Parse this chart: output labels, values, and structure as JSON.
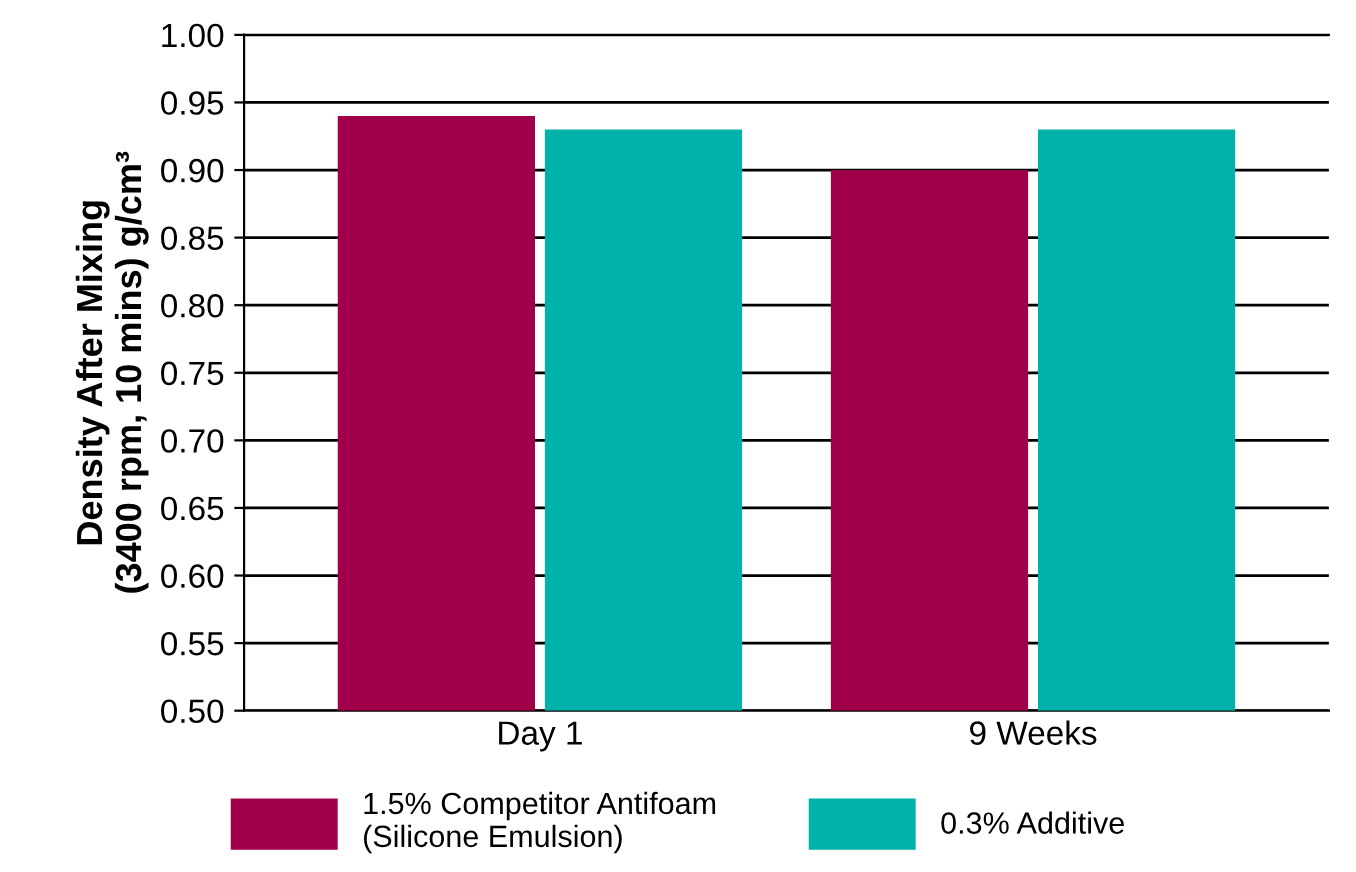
{
  "chart_data": {
    "type": "bar",
    "ylabel": "Density After Mixing\n(3400 rpm, 10 mins) g/cm³",
    "categories": [
      "Day 1",
      "9 Weeks"
    ],
    "series": [
      {
        "name": "1.5% Competitor Antifoam\n(Silicone Emulsion)",
        "color": "#a0004a",
        "values": [
          0.94,
          0.9
        ]
      },
      {
        "name": "0.3% Additive",
        "color": "#00b2a9",
        "values": [
          0.93,
          0.93
        ]
      }
    ],
    "ylim": [
      0.5,
      1.0
    ],
    "yticks": [
      {
        "value": 0.5,
        "label": "0.50"
      },
      {
        "value": 0.55,
        "label": "0.55"
      },
      {
        "value": 0.6,
        "label": "0.60"
      },
      {
        "value": 0.65,
        "label": "0.65"
      },
      {
        "value": 0.7,
        "label": "0.70"
      },
      {
        "value": 0.75,
        "label": "0.75"
      },
      {
        "value": 0.8,
        "label": "0.80"
      },
      {
        "value": 0.85,
        "label": "0.85"
      },
      {
        "value": 0.9,
        "label": "0.90"
      },
      {
        "value": 0.95,
        "label": "0.95"
      },
      {
        "value": 1.0,
        "label": "1.00"
      }
    ],
    "grid": "y",
    "legend": "bottom"
  }
}
